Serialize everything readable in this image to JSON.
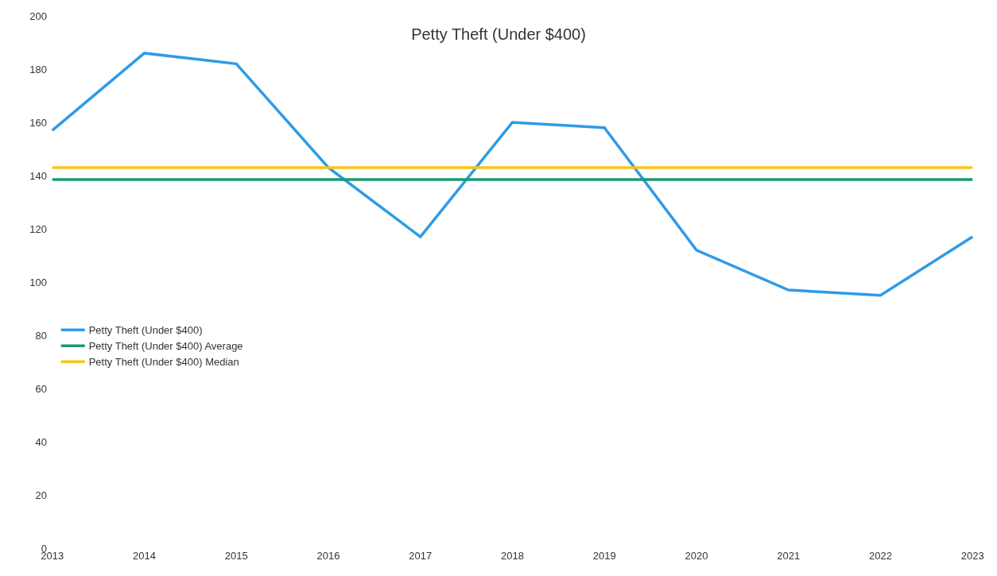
{
  "chart_data": {
    "type": "line",
    "title": "Petty Theft (Under $400)",
    "categories": [
      "2013",
      "2014",
      "2015",
      "2016",
      "2017",
      "2018",
      "2019",
      "2020",
      "2021",
      "2022",
      "2023"
    ],
    "series": [
      {
        "name": "Petty Theft (Under $400)",
        "color": "#2e9be6",
        "values": [
          157,
          186,
          182,
          143,
          117,
          160,
          158,
          112,
          97,
          95,
          117
        ]
      },
      {
        "name": "Petty Theft (Under $400) Average",
        "color": "#1a9a72",
        "values": [
          138.5,
          138.5,
          138.5,
          138.5,
          138.5,
          138.5,
          138.5,
          138.5,
          138.5,
          138.5,
          138.5
        ]
      },
      {
        "name": "Petty Theft (Under $400) Median",
        "color": "#f7c31c",
        "values": [
          143,
          143,
          143,
          143,
          143,
          143,
          143,
          143,
          143,
          143,
          143
        ]
      }
    ],
    "ylim": [
      0,
      200
    ],
    "yticks": [
      0,
      20,
      40,
      60,
      80,
      100,
      120,
      140,
      160,
      180,
      200
    ],
    "legend": "left",
    "marker": "none",
    "line_style": "solid"
  }
}
